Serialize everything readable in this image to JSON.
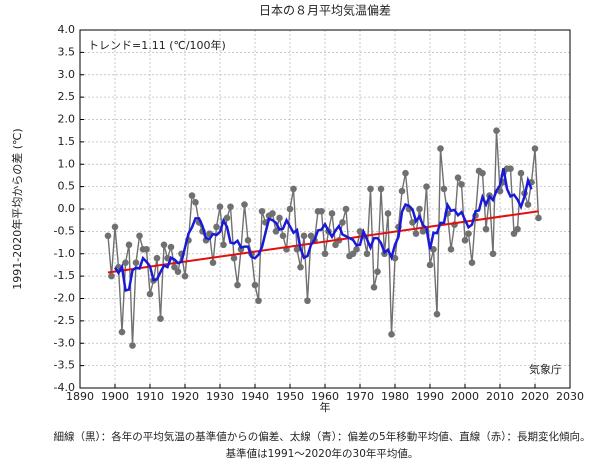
{
  "chart_data": {
    "type": "line",
    "title": "日本の８月平均気温偏差",
    "annotation": "トレンド=1.11 (℃/100年)",
    "source": "気象庁",
    "xlabel": "年",
    "ylabel": "1991-2020年平均からの差 (℃)",
    "footnote": [
      "細線（黒）：各年の平均気温の基準値からの偏差、太線（青）：偏差の5年移動平均値、直線（赤）：長期変化傾向。",
      "基準値は1991〜2020年の30年平均値。"
    ],
    "xlim": [
      1890,
      2030
    ],
    "xticks": [
      1890,
      1900,
      1910,
      1920,
      1930,
      1940,
      1950,
      1960,
      1970,
      1980,
      1990,
      2000,
      2010,
      2020,
      2030
    ],
    "ylim": [
      -4,
      4
    ],
    "yticks": [
      {
        "value": -4,
        "label": "-4.0"
      },
      -3.5,
      {
        "value": -3,
        "label": "-3.0"
      },
      -2.5,
      {
        "value": -2,
        "label": "-2.0"
      },
      -1.5,
      {
        "value": -1,
        "label": "-1.0"
      },
      -0.5,
      {
        "value": 0,
        "label": "0.0"
      },
      0.5,
      {
        "value": 1,
        "label": "1.0"
      },
      1.5,
      {
        "value": 2,
        "label": "2.0"
      },
      2.5,
      {
        "value": 3,
        "label": "3.0"
      },
      3.5,
      {
        "value": 4,
        "label": "4.0"
      }
    ],
    "grid": true,
    "x": [
      1898,
      1899,
      1900,
      1901,
      1902,
      1903,
      1904,
      1905,
      1906,
      1907,
      1908,
      1909,
      1910,
      1911,
      1912,
      1913,
      1914,
      1915,
      1916,
      1917,
      1918,
      1919,
      1920,
      1921,
      1922,
      1923,
      1924,
      1925,
      1926,
      1927,
      1928,
      1929,
      1930,
      1931,
      1932,
      1933,
      1934,
      1935,
      1936,
      1937,
      1938,
      1939,
      1940,
      1941,
      1942,
      1943,
      1944,
      1945,
      1946,
      1947,
      1948,
      1949,
      1950,
      1951,
      1952,
      1953,
      1954,
      1955,
      1956,
      1957,
      1958,
      1959,
      1960,
      1961,
      1962,
      1963,
      1964,
      1965,
      1966,
      1967,
      1968,
      1969,
      1970,
      1971,
      1972,
      1973,
      1974,
      1975,
      1976,
      1977,
      1978,
      1979,
      1980,
      1981,
      1982,
      1983,
      1984,
      1985,
      1986,
      1987,
      1988,
      1989,
      1990,
      1991,
      1992,
      1993,
      1994,
      1995,
      1996,
      1997,
      1998,
      1999,
      2000,
      2001,
      2002,
      2003,
      2004,
      2005,
      2006,
      2007,
      2008,
      2009,
      2010,
      2011,
      2012,
      2013,
      2014,
      2015,
      2016,
      2017,
      2018,
      2019,
      2020,
      2021
    ],
    "series": [
      {
        "color": "#707070",
        "markers": true,
        "values": [
          -0.6,
          -1.5,
          -0.4,
          -1.3,
          -2.75,
          -1.2,
          -0.8,
          -3.05,
          -1.2,
          -0.6,
          -0.9,
          -0.9,
          -1.9,
          -1.6,
          -1.1,
          -2.45,
          -0.8,
          -1.1,
          -0.85,
          -1.3,
          -1.4,
          -1.0,
          -1.5,
          -0.7,
          0.3,
          0.15,
          -0.3,
          -0.5,
          -0.7,
          -0.55,
          -1.2,
          -0.4,
          0.05,
          -0.8,
          -0.2,
          0.05,
          -1.1,
          -1.7,
          -0.9,
          0.1,
          -0.7,
          -1.0,
          -1.7,
          -2.05,
          -0.05,
          -0.3,
          -0.15,
          -0.1,
          -0.5,
          -0.2,
          -0.6,
          -0.9,
          0.0,
          0.45,
          -0.9,
          -1.3,
          -0.6,
          -2.05,
          -0.6,
          -0.7,
          -0.05,
          -0.05,
          -1.0,
          -0.5,
          -0.1,
          -0.8,
          -0.7,
          -0.3,
          0.0,
          -1.05,
          -1.0,
          -0.9,
          -0.5,
          -0.6,
          -1.0,
          0.45,
          -1.75,
          -1.4,
          0.45,
          -1.0,
          -0.1,
          -2.8,
          -1.1,
          -0.4,
          0.4,
          0.8,
          0.0,
          -0.3,
          -0.55,
          0.0,
          -0.5,
          0.5,
          -1.25,
          -0.9,
          -2.35,
          1.35,
          0.45,
          -0.1,
          -0.9,
          -0.35,
          0.7,
          0.55,
          -0.7,
          -0.55,
          -1.2,
          -0.15,
          0.85,
          0.8,
          -0.45,
          0.3,
          -1.0,
          1.75,
          0.4,
          0.6,
          0.9,
          0.9,
          -0.55,
          -0.45,
          0.8,
          0.35,
          0.1,
          0.6,
          1.35,
          -0.2
        ]
      },
      {
        "color": "#1a1ad6",
        "markers": false,
        "values": [
          null,
          null,
          -1.31,
          -1.43,
          -1.29,
          -1.82,
          -1.8,
          -1.37,
          -1.31,
          -1.33,
          -1.1,
          -1.18,
          -1.28,
          -1.59,
          -1.57,
          -1.41,
          -1.26,
          -1.3,
          -1.09,
          -1.13,
          -1.21,
          -1.18,
          -0.86,
          -0.55,
          -0.41,
          -0.21,
          -0.21,
          -0.38,
          -0.65,
          -0.67,
          -0.56,
          -0.58,
          -0.51,
          -0.26,
          -0.4,
          -0.75,
          -0.77,
          -0.71,
          -0.86,
          -0.84,
          -0.84,
          -1.07,
          -1.1,
          -1.02,
          -0.85,
          -0.53,
          -0.22,
          -0.25,
          -0.31,
          -0.46,
          -0.44,
          -0.25,
          -0.39,
          -0.53,
          -0.47,
          -0.88,
          -1.09,
          -1.05,
          -0.8,
          -0.69,
          -0.48,
          -0.46,
          -0.34,
          -0.49,
          -0.62,
          -0.48,
          -0.38,
          -0.57,
          -0.61,
          -0.65,
          -0.69,
          -0.81,
          -0.8,
          -0.51,
          -0.68,
          -0.86,
          -0.65,
          -0.65,
          -0.76,
          -0.97,
          -0.91,
          -1.08,
          -0.8,
          -0.62,
          -0.06,
          0.1,
          0.07,
          -0.01,
          -0.27,
          -0.17,
          -0.36,
          -0.43,
          -0.9,
          -0.53,
          -0.54,
          -0.31,
          -0.31,
          0.09,
          -0.04,
          -0.02,
          -0.14,
          -0.07,
          -0.24,
          -0.41,
          -0.35,
          -0.05,
          -0.03,
          0.27,
          0.1,
          0.28,
          0.2,
          0.41,
          0.53,
          0.91,
          0.45,
          0.28,
          0.32,
          0.21,
          0.05,
          0.28,
          0.64,
          0.44,
          null,
          null
        ]
      }
    ],
    "trend": {
      "color": "#e01010",
      "x": [
        1898,
        2021
      ],
      "values": [
        -1.42,
        -0.05
      ]
    }
  }
}
